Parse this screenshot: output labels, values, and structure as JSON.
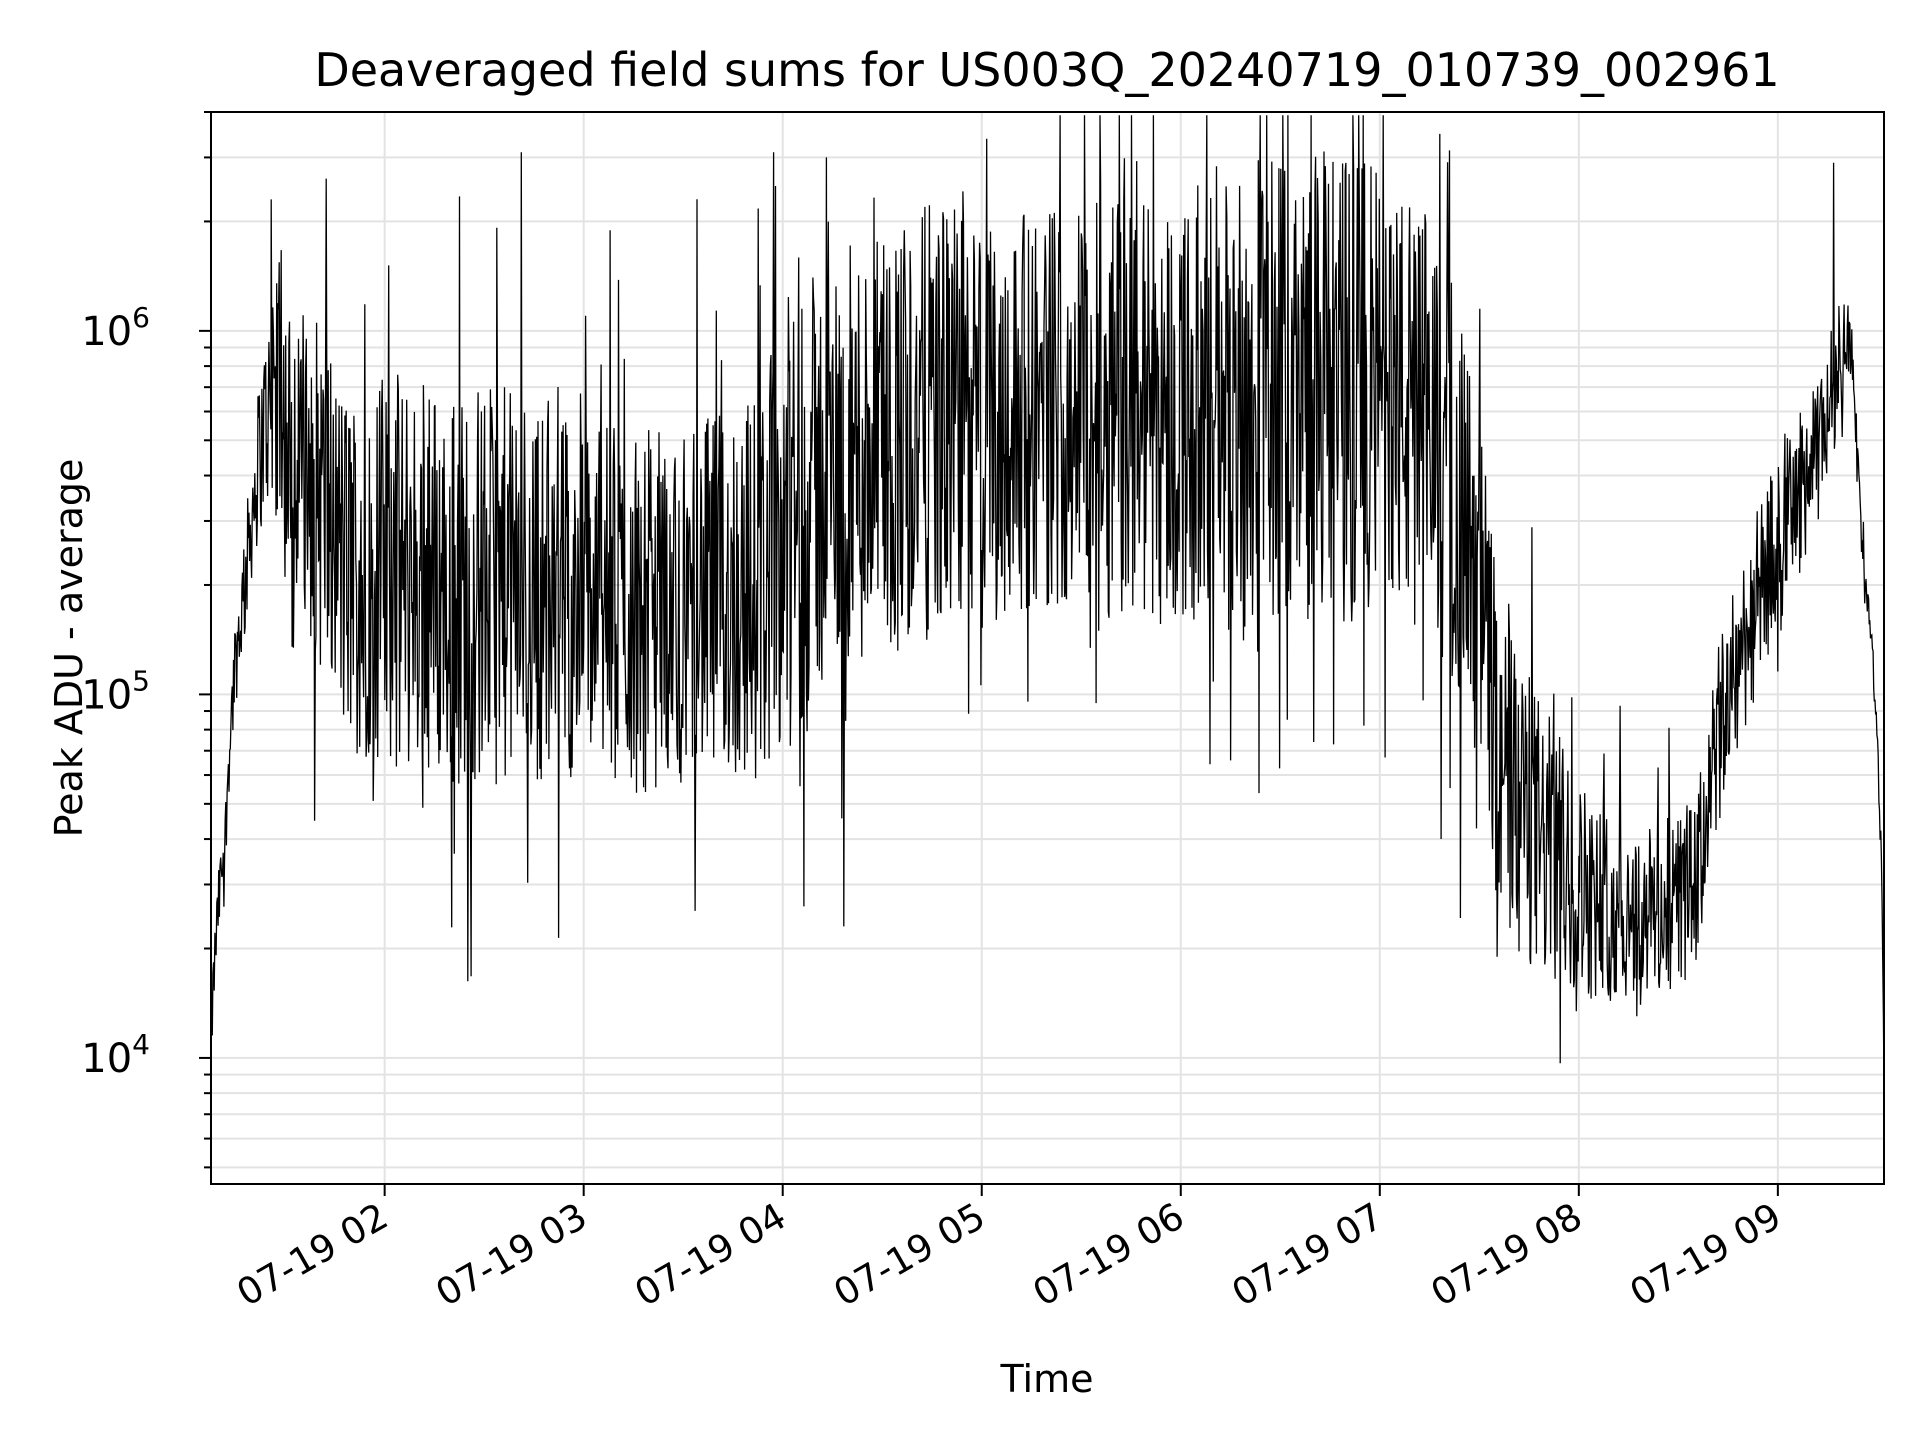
{
  "chart_data": {
    "type": "line",
    "title": "Deaveraged field sums for US003Q_20240719_010739_002961",
    "xlabel": "Time",
    "ylabel": "Peak ADU - average",
    "y_scale": "log",
    "ylim": [
      4500,
      4000000
    ],
    "xlim": [
      "07-19 01:07:39",
      "07-19 09:32"
    ],
    "grid": true,
    "x_tick_labels": [
      "07-19 02",
      "07-19 03",
      "07-19 04",
      "07-19 05",
      "07-19 06",
      "07-19 07",
      "07-19 08",
      "07-19 09"
    ],
    "y_tick_labels": [
      {
        "base": "10",
        "exp": "4",
        "value": 10000
      },
      {
        "base": "10",
        "exp": "5",
        "value": 100000
      },
      {
        "base": "10",
        "exp": "6",
        "value": 1000000
      }
    ],
    "series_color": "#000000",
    "envelope": {
      "time_hours": [
        1.128,
        1.2,
        1.3,
        1.4,
        1.45,
        1.5,
        1.6,
        1.7,
        1.8,
        2.0,
        2.3,
        2.6,
        3.0,
        3.3,
        3.6,
        3.9,
        4.0,
        4.2,
        4.5,
        4.8,
        5.0,
        5.3,
        5.6,
        6.0,
        6.3,
        6.6,
        6.9,
        7.0,
        7.3,
        7.45,
        7.6,
        7.8,
        8.0,
        8.2,
        8.4,
        8.6,
        8.8,
        9.0,
        9.2,
        9.28,
        9.35,
        9.42,
        9.5,
        9.533
      ],
      "median": [
        11000,
        40000,
        200000,
        550000,
        800000,
        500000,
        420000,
        330000,
        220000,
        220000,
        200000,
        200000,
        180000,
        170000,
        180000,
        200000,
        300000,
        380000,
        500000,
        580000,
        550000,
        620000,
        650000,
        600000,
        650000,
        700000,
        700000,
        700000,
        500000,
        250000,
        60000,
        40000,
        30000,
        25000,
        25000,
        30000,
        120000,
        250000,
        450000,
        700000,
        1000000,
        250000,
        70000,
        8000
      ],
      "spread_decades": [
        0.1,
        0.1,
        0.15,
        0.25,
        0.35,
        0.4,
        0.45,
        0.5,
        0.5,
        0.55,
        0.55,
        0.55,
        0.5,
        0.5,
        0.5,
        0.55,
        0.6,
        0.6,
        0.6,
        0.6,
        0.55,
        0.55,
        0.6,
        0.6,
        0.65,
        0.65,
        0.65,
        0.6,
        0.6,
        0.5,
        0.45,
        0.4,
        0.3,
        0.25,
        0.25,
        0.25,
        0.25,
        0.25,
        0.2,
        0.2,
        0.1,
        0.05,
        0.05,
        0.05
      ]
    },
    "annotated_peaks": [
      {
        "time_hours": 1.43,
        "value": 2300000
      },
      {
        "time_hours": 9.28,
        "value": 2900000
      },
      {
        "time_hours": 8.31,
        "value": 14000
      }
    ]
  }
}
